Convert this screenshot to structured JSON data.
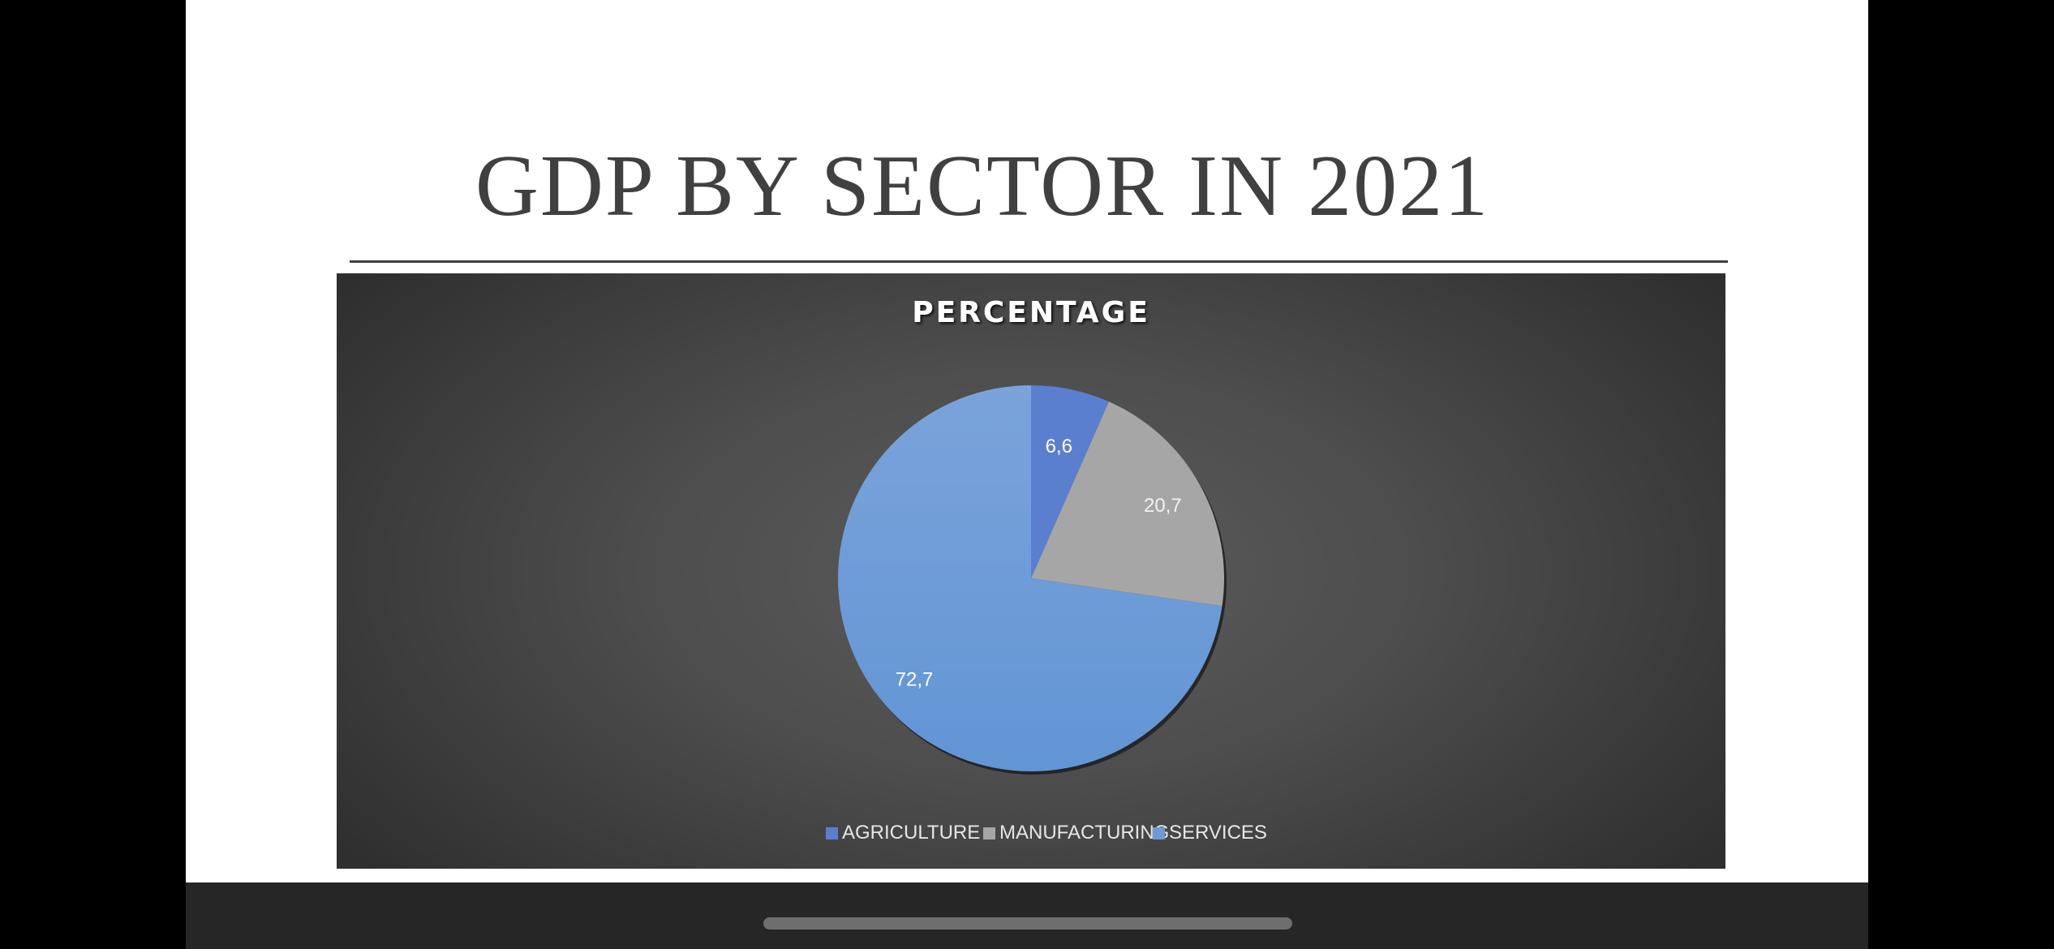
{
  "slide": {
    "title": "GDP BY SECTOR IN 2021"
  },
  "chart_data": {
    "type": "pie",
    "title": "PERCENTAGE",
    "categories": [
      "AGRICULTURE",
      "MANUFACTURING",
      "SERVICES"
    ],
    "values": [
      6.6,
      20.7,
      72.7
    ],
    "data_labels": [
      "6,6",
      "20,7",
      "72,7"
    ],
    "colors": [
      "#5b7fcf",
      "#a6a6a6",
      "#6f9ad6"
    ],
    "legend_position": "bottom"
  }
}
